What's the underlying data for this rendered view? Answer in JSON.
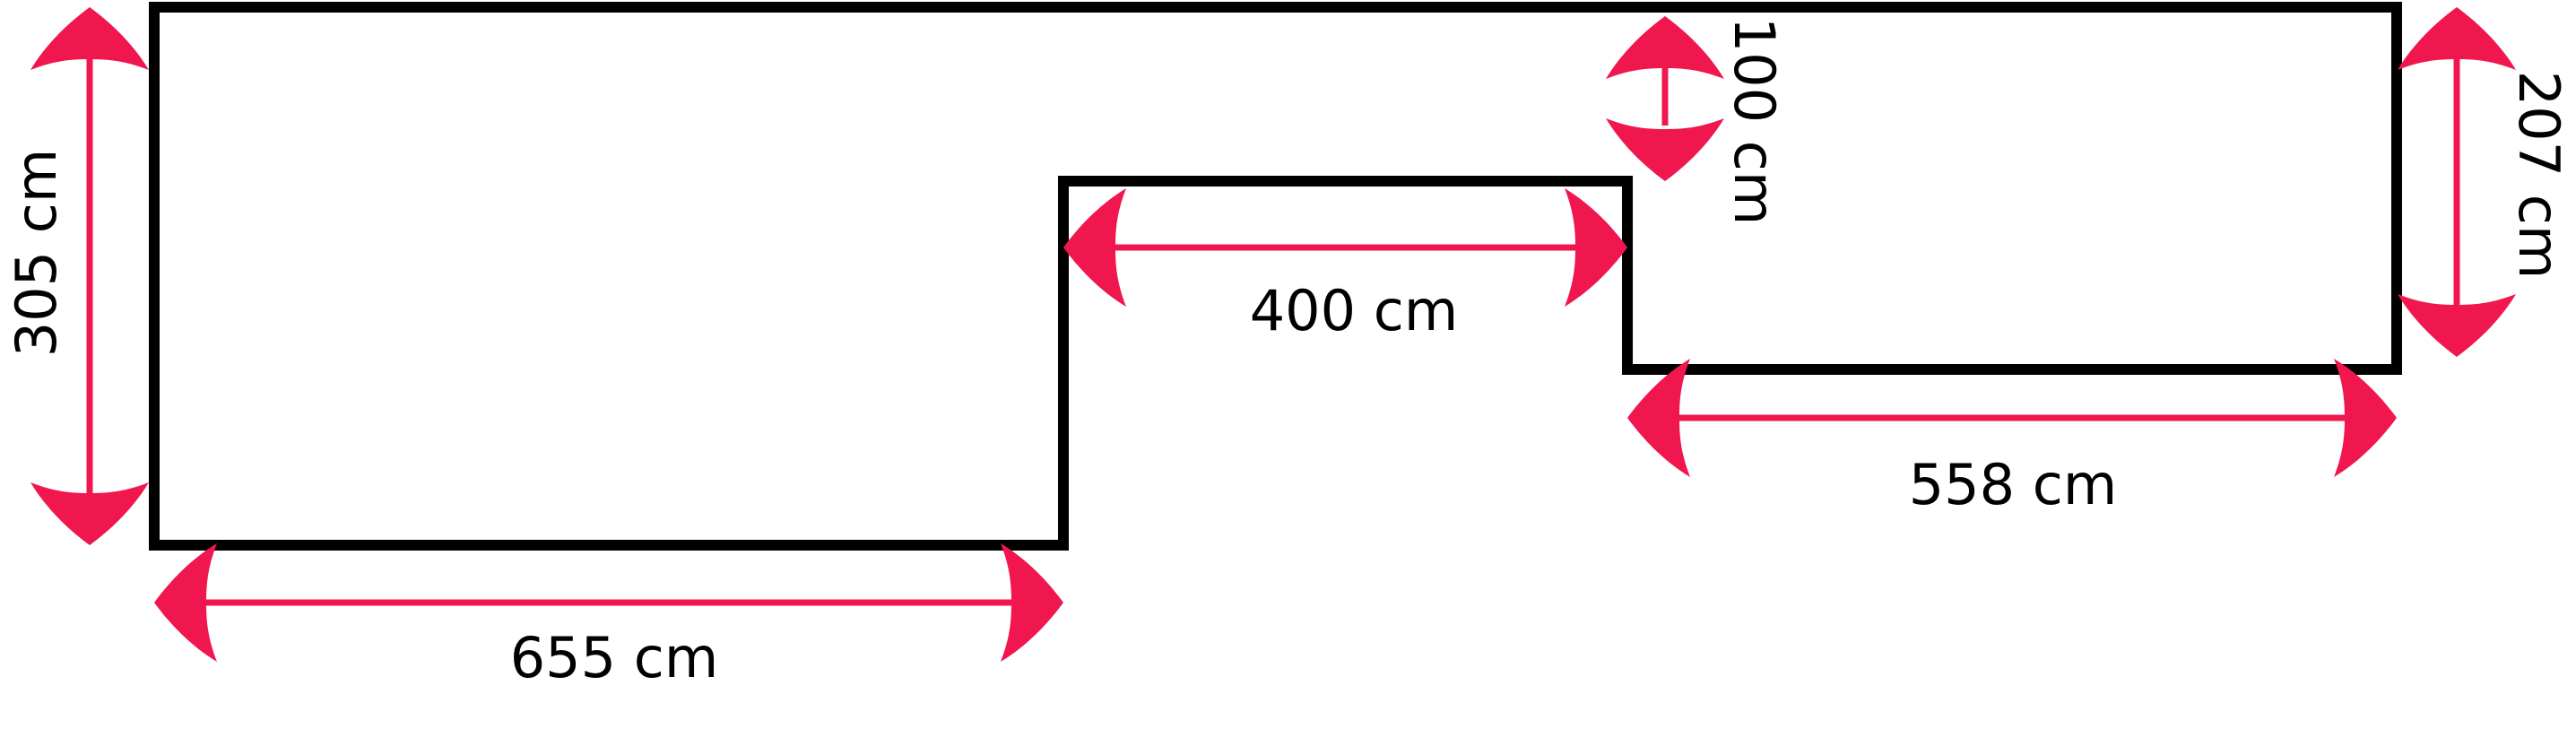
{
  "diagram": {
    "colors": {
      "outline": "#000000",
      "dimension": "#f0174f",
      "background": "#ffffff"
    },
    "dimensions": {
      "left_height": "305 cm",
      "left_bottom_width": "655 cm",
      "middle_width": "400 cm",
      "step_height": "100 cm",
      "right_height": "207 cm",
      "right_bottom_width": "558 cm"
    }
  }
}
